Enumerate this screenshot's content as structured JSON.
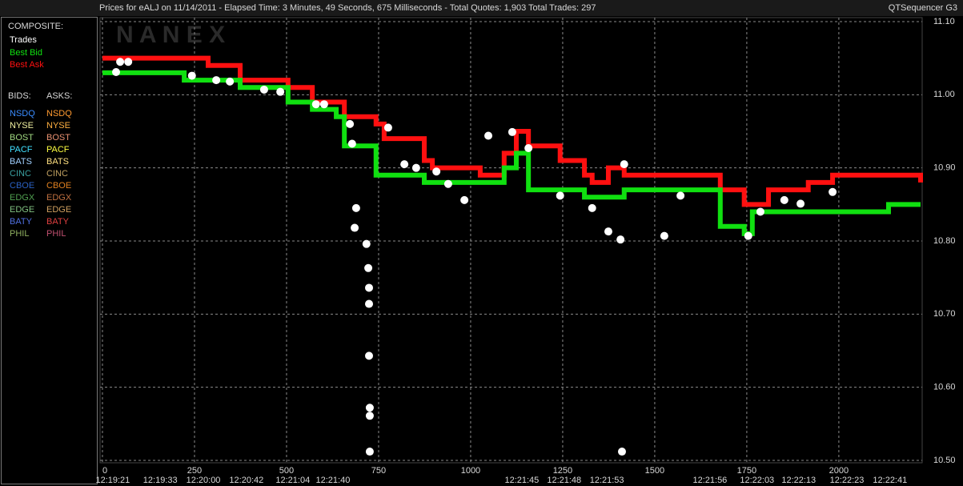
{
  "chart_data": {
    "type": "line",
    "title": "Prices for  eALJ  on  11/14/2011  -  Elapsed Time: 3 Minutes, 49 Seconds, 675 Milliseconds  -  Total Quotes: 1,903  Total Trades: 297",
    "subtitle": "QTSequencer G3",
    "watermark": "N A N E X",
    "legend": {
      "composite_title": "COMPOSITE:",
      "bids_title": "BIDS:",
      "asks_title": "ASKS:",
      "exchanges": [
        {
          "name": "NSDQ",
          "bid_color": "#3a8cff",
          "ask_color": "#ff9a30"
        },
        {
          "name": "NYSE",
          "bid_color": "#f0f0a0",
          "ask_color": "#ffb040"
        },
        {
          "name": "BOST",
          "bid_color": "#a0d880",
          "ask_color": "#e89070"
        },
        {
          "name": "PACF",
          "bid_color": "#40e0ff",
          "ask_color": "#ffff40"
        },
        {
          "name": "BATS",
          "bid_color": "#a0d0ff",
          "ask_color": "#ffe080"
        },
        {
          "name": "CINC",
          "bid_color": "#3aa0a0",
          "ask_color": "#c0a060"
        },
        {
          "name": "CBOE",
          "bid_color": "#2a60c0",
          "ask_color": "#e08020"
        },
        {
          "name": "EDGX",
          "bid_color": "#50a050",
          "ask_color": "#c07040"
        },
        {
          "name": "EDGE",
          "bid_color": "#80c080",
          "ask_color": "#d0a060"
        },
        {
          "name": "BATY",
          "bid_color": "#5070e0",
          "ask_color": "#e04040"
        },
        {
          "name": "PHIL",
          "bid_color": "#90b060",
          "ask_color": "#c05070"
        }
      ]
    },
    "xlim": [
      0,
      2222
    ],
    "xticks": [
      0,
      250,
      500,
      750,
      1000,
      1250,
      1500,
      1750,
      2000
    ],
    "time_ticks": [
      {
        "value": 28,
        "label": "12:19:21"
      },
      {
        "value": 157,
        "label": "12:19:33"
      },
      {
        "value": 274,
        "label": "12:20:00"
      },
      {
        "value": 391,
        "label": "12:20:42"
      },
      {
        "value": 517,
        "label": "12:21:04"
      },
      {
        "value": 626,
        "label": "12:21:40"
      },
      {
        "value": 1139,
        "label": "12:21:45"
      },
      {
        "value": 1254,
        "label": "12:21:48"
      },
      {
        "value": 1370,
        "label": "12:21:53"
      },
      {
        "value": 1650,
        "label": "12:21:56"
      },
      {
        "value": 1778,
        "label": "12:22:03"
      },
      {
        "value": 1891,
        "label": "12:22:13"
      },
      {
        "value": 2022,
        "label": "12:22:23"
      },
      {
        "value": 2139,
        "label": "12:22:41"
      }
    ],
    "ylim": [
      10.5,
      11.1
    ],
    "yticks": [
      {
        "value": 10.5,
        "label": "10.50"
      },
      {
        "value": 10.6,
        "label": "10.60"
      },
      {
        "value": 10.7,
        "label": "10.70"
      },
      {
        "value": 10.8,
        "label": "10.80"
      },
      {
        "value": 10.9,
        "label": "10.90"
      },
      {
        "value": 11.0,
        "label": "11.00"
      },
      {
        "value": 11.1,
        "label": "11.10"
      }
    ],
    "grid": true,
    "x": [
      0,
      222,
      287,
      374,
      504,
      570,
      635,
      657,
      743,
      765,
      874,
      896,
      1026,
      1091,
      1124,
      1157,
      1243,
      1309,
      1330,
      1374,
      1417,
      1526,
      1678,
      1743,
      1765,
      1809,
      1917,
      1983,
      2135,
      2222
    ],
    "series": [
      {
        "name": "Best Ask",
        "color": "#ff1010",
        "values": [
          11.05,
          11.05,
          11.04,
          11.02,
          11.01,
          10.99,
          10.99,
          10.97,
          10.96,
          10.94,
          10.91,
          10.9,
          10.89,
          10.92,
          10.95,
          10.93,
          10.91,
          10.89,
          10.88,
          10.9,
          10.89,
          10.89,
          10.87,
          10.85,
          10.85,
          10.87,
          10.88,
          10.89,
          10.89,
          10.88
        ]
      },
      {
        "name": "Best Bid",
        "color": "#10e010",
        "values": [
          11.03,
          11.02,
          11.02,
          11.01,
          10.99,
          10.98,
          10.97,
          10.93,
          10.89,
          10.89,
          10.88,
          10.88,
          10.88,
          10.9,
          10.92,
          10.87,
          10.87,
          10.86,
          10.86,
          10.86,
          10.87,
          10.87,
          10.82,
          10.81,
          10.84,
          10.84,
          10.84,
          10.84,
          10.85,
          10.85
        ]
      }
    ],
    "trades": {
      "name": "Trades",
      "color": "#ffffff",
      "x": [
        48,
        70,
        37,
        243,
        309,
        346,
        439,
        483,
        580,
        602,
        672,
        678,
        689,
        685,
        717,
        722,
        724,
        724,
        724,
        726,
        726,
        726,
        776,
        820,
        852,
        907,
        939,
        983,
        1048,
        1113,
        1157,
        1243,
        1330,
        1374,
        1407,
        1417,
        1411,
        1526,
        1570,
        1754,
        1787,
        1852,
        1896,
        1983
      ],
      "values": [
        11.045,
        11.045,
        11.031,
        11.026,
        11.02,
        11.018,
        11.007,
        11.004,
        10.987,
        10.987,
        10.96,
        10.933,
        10.845,
        10.818,
        10.796,
        10.763,
        10.736,
        10.714,
        10.643,
        10.572,
        10.561,
        10.512,
        10.955,
        10.905,
        10.9,
        10.895,
        10.878,
        10.856,
        10.944,
        10.949,
        10.927,
        10.862,
        10.845,
        10.813,
        10.802,
        10.905,
        10.512,
        10.807,
        10.862,
        10.807,
        10.84,
        10.856,
        10.851,
        10.867
      ]
    }
  }
}
